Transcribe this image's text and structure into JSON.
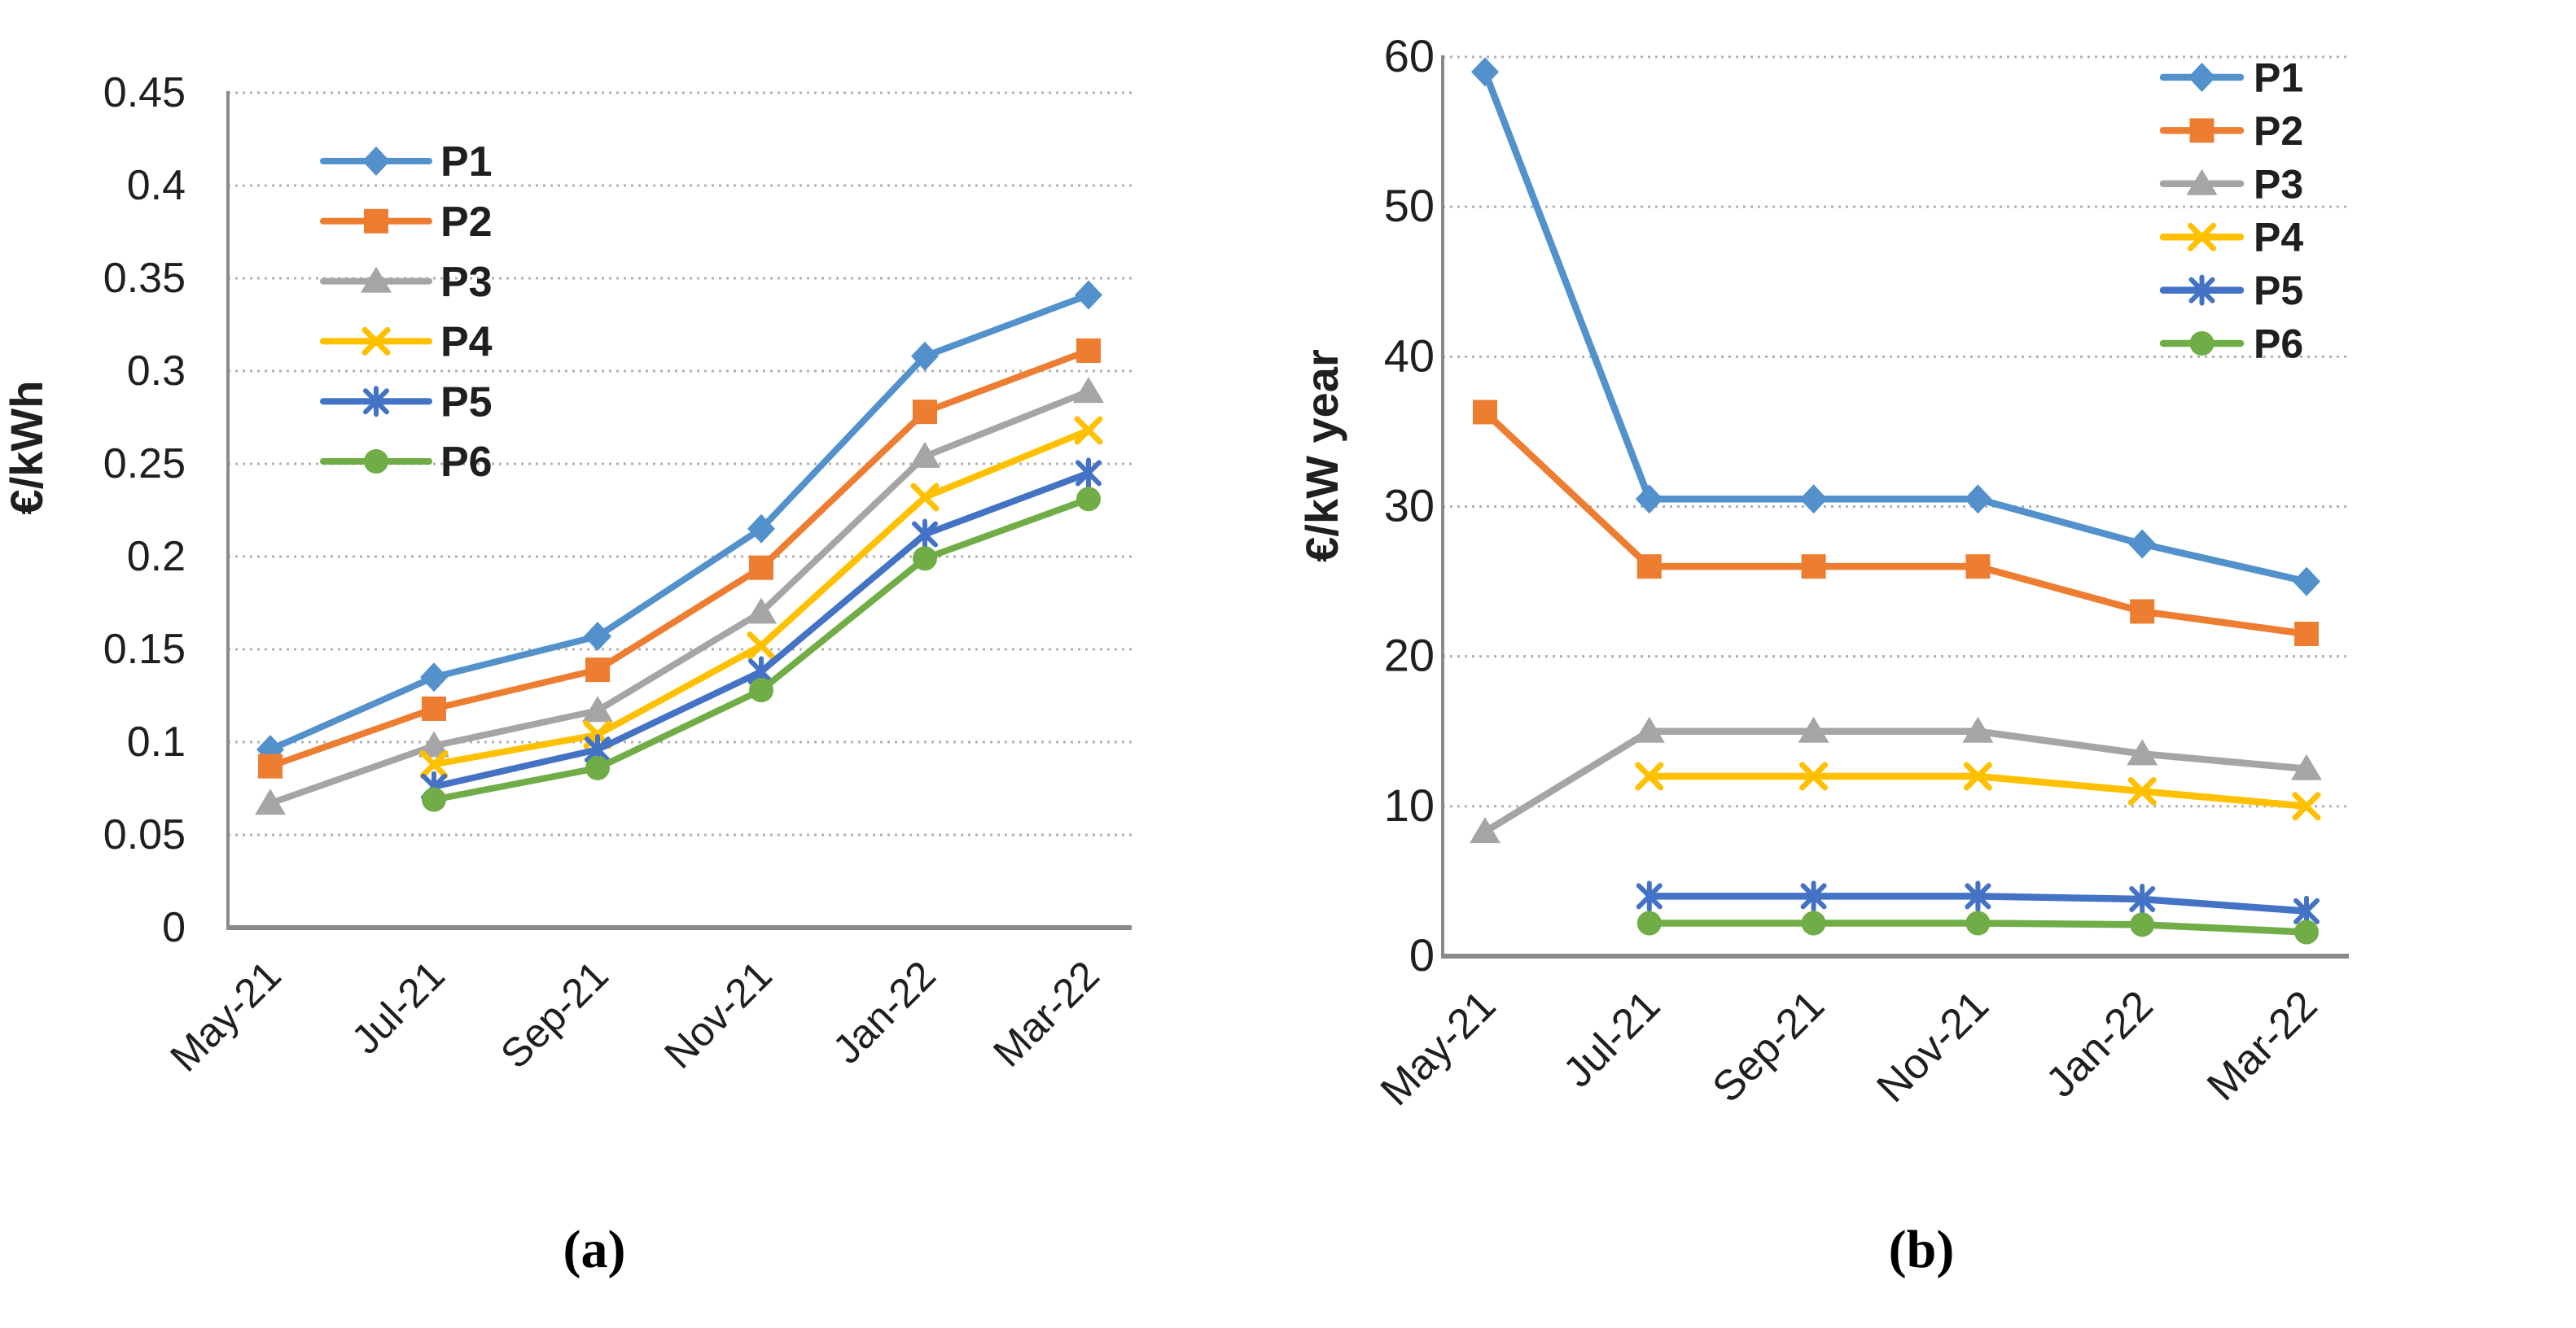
{
  "figure": {
    "background_color": "#ffffff",
    "text_color": "#1f1f1f",
    "axis_color": "#8a8a8a",
    "gridline_color": "#b0b0b0"
  },
  "chart_data": [
    {
      "id": "a",
      "type": "line",
      "caption": "(a)",
      "ylabel": "€/kWh",
      "categories": [
        "May-21",
        "Jul-21",
        "Sep-21",
        "Nov-21",
        "Jan-22",
        "Mar-22"
      ],
      "ylim": [
        0,
        0.45
      ],
      "ytick_values": [
        0,
        0.05,
        0.1,
        0.15,
        0.2,
        0.25,
        0.3,
        0.35,
        0.4,
        0.45
      ],
      "ytick_labels": [
        "0",
        "0.05",
        "0.1",
        "0.15",
        "0.2",
        "0.25",
        "0.3",
        "0.35",
        "0.4",
        "0.45"
      ],
      "grid": "horizontal-dotted",
      "legend_position": "top-left",
      "series": [
        {
          "name": "P1",
          "color": "#5291CB",
          "marker": "diamond",
          "values": [
            0.096,
            0.135,
            0.157,
            0.215,
            0.308,
            0.341
          ]
        },
        {
          "name": "P2",
          "color": "#ED7D31",
          "marker": "square",
          "values": [
            0.087,
            0.118,
            0.139,
            0.194,
            0.278,
            0.311
          ]
        },
        {
          "name": "P3",
          "color": "#A5A5A5",
          "marker": "triangle",
          "values": [
            0.067,
            0.098,
            0.117,
            0.17,
            0.254,
            0.289
          ]
        },
        {
          "name": "P4",
          "color": "#FFC000",
          "marker": "x",
          "values": [
            null,
            0.088,
            0.104,
            0.152,
            0.232,
            0.268
          ]
        },
        {
          "name": "P5",
          "color": "#4472C4",
          "marker": "star",
          "values": [
            null,
            0.076,
            0.096,
            0.138,
            0.212,
            0.245
          ]
        },
        {
          "name": "P6",
          "color": "#70AD47",
          "marker": "circle",
          "values": [
            null,
            0.069,
            0.086,
            0.128,
            0.199,
            0.231
          ]
        }
      ]
    },
    {
      "id": "b",
      "type": "line",
      "caption": "(b)",
      "ylabel": "€/kW year",
      "categories": [
        "May-21",
        "Jul-21",
        "Sep-21",
        "Nov-21",
        "Jan-22",
        "Mar-22"
      ],
      "ylim": [
        0,
        60
      ],
      "ytick_values": [
        0,
        10,
        20,
        30,
        40,
        50,
        60
      ],
      "ytick_labels": [
        "0",
        "10",
        "20",
        "30",
        "40",
        "50",
        "60"
      ],
      "grid": "horizontal-dotted",
      "legend_position": "top-right",
      "series": [
        {
          "name": "P1",
          "color": "#5291CB",
          "marker": "diamond",
          "values": [
            59,
            30.5,
            30.5,
            30.5,
            27.5,
            25
          ]
        },
        {
          "name": "P2",
          "color": "#ED7D31",
          "marker": "square",
          "values": [
            36.3,
            26,
            26,
            26,
            23,
            21.5
          ]
        },
        {
          "name": "P3",
          "color": "#A5A5A5",
          "marker": "triangle",
          "values": [
            8.3,
            15,
            15,
            15,
            13.5,
            12.5
          ]
        },
        {
          "name": "P4",
          "color": "#FFC000",
          "marker": "x",
          "values": [
            null,
            12,
            12,
            12,
            11,
            10
          ]
        },
        {
          "name": "P5",
          "color": "#4472C4",
          "marker": "star",
          "values": [
            null,
            4,
            4,
            4,
            3.8,
            3
          ]
        },
        {
          "name": "P6",
          "color": "#70AD47",
          "marker": "circle",
          "values": [
            null,
            2.2,
            2.2,
            2.2,
            2.1,
            1.6
          ]
        }
      ]
    }
  ]
}
